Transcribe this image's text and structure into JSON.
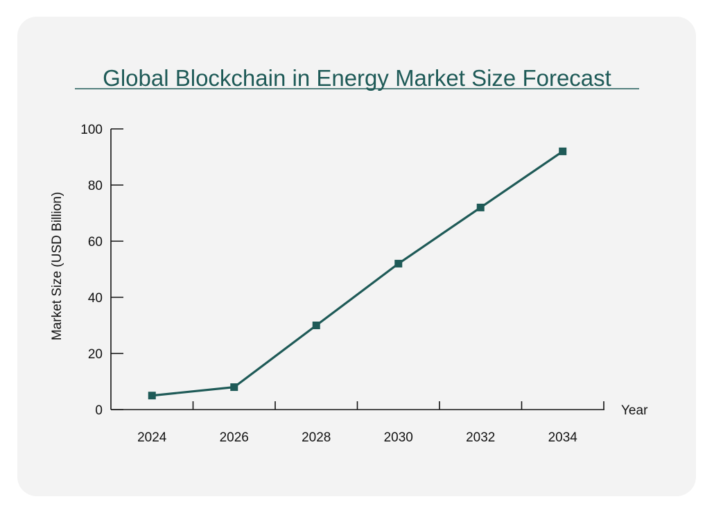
{
  "chart_data": {
    "type": "line",
    "title": "Global Blockchain in Energy Market Size Forecast",
    "xlabel": "Year",
    "ylabel": "Market Size (USD Billion)",
    "categories": [
      "2024",
      "2026",
      "2028",
      "2030",
      "2032",
      "2034"
    ],
    "series": [
      {
        "name": "Market Size",
        "values": [
          5,
          8,
          30,
          52,
          72,
          92
        ]
      }
    ],
    "ylim": [
      0,
      100
    ],
    "yticks": [
      "0",
      "20",
      "40",
      "60",
      "80",
      "100"
    ],
    "grid": false,
    "colors": {
      "line": "#1e5a57",
      "title": "#1e5a57",
      "axis": "#111111"
    }
  }
}
